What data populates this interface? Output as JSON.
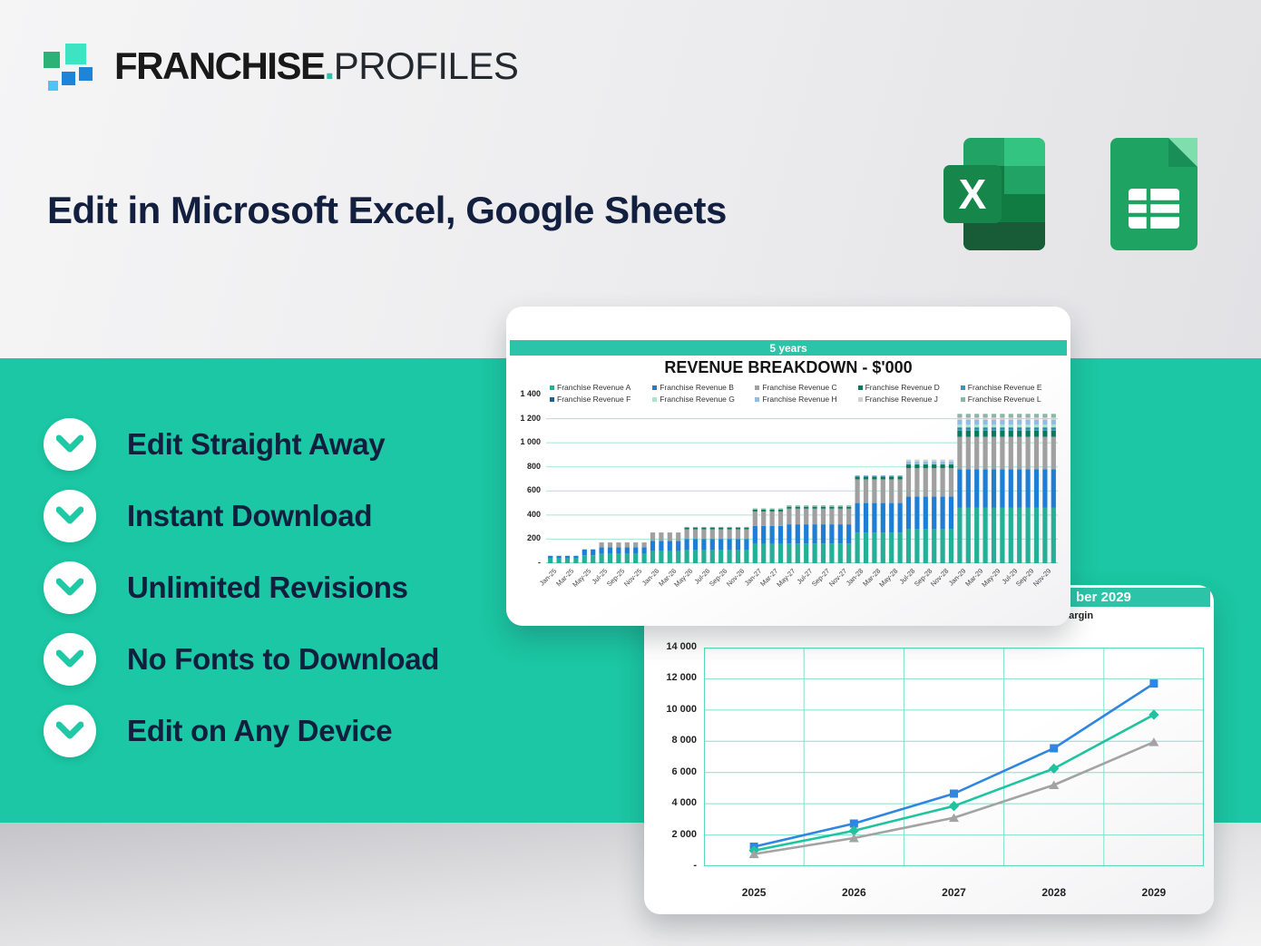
{
  "brand": {
    "logo_text_bold": "FRANCHISE",
    "logo_dot": ".",
    "logo_text_light": "PROFILES"
  },
  "heading": "Edit in Microsoft Excel, Google Sheets",
  "app_icons": [
    {
      "name": "microsoft-excel",
      "letter": "X"
    },
    {
      "name": "google-sheets"
    }
  ],
  "features": [
    {
      "label": "Edit Straight Away"
    },
    {
      "label": "Instant Download"
    },
    {
      "label": "Unlimited Revisions"
    },
    {
      "label": "No Fonts to Download"
    },
    {
      "label": "Edit on Any Device"
    }
  ],
  "colors": {
    "band_teal": "#1bc7a4",
    "accent_teal": "#2bc4a9",
    "navy": "#131f3e",
    "excel_green": "#185c37",
    "sheets_green": "#1ea362",
    "gridline_teal": "#a3e6d7"
  },
  "chart_data": [
    {
      "type": "bar",
      "stacked": true,
      "tab_label": "5 years",
      "title": "REVENUE BREAKDOWN - $'000",
      "ylim": [
        0,
        1400
      ],
      "ytick_labels": [
        "-",
        "200",
        "400",
        "600",
        "800",
        "1 000",
        "1 200",
        "1 400"
      ],
      "xtick_labels": [
        "Jan-25",
        "Mar-25",
        "May-25",
        "Jul-25",
        "Sep-25",
        "Nov-25",
        "Jan-26",
        "Mar-26",
        "May-26",
        "Jul-26",
        "Sep-26",
        "Nov-26",
        "Jan-27",
        "Mar-27",
        "May-27",
        "Jul-27",
        "Sep-27",
        "Nov-27",
        "Jan-28",
        "Mar-28",
        "May-28",
        "Jul-28",
        "Sep-28",
        "Nov-28",
        "Jan-29",
        "Mar-29",
        "May-29",
        "Jul-29",
        "Sep-29",
        "Nov-29"
      ],
      "bars_per_tick": 2,
      "legend_position": "top",
      "grid": true,
      "series": [
        {
          "name": "Franchise Revenue A",
          "color": "#23b097",
          "values": [
            40,
            40,
            40,
            40,
            65,
            65,
            80,
            80,
            80,
            80,
            80,
            80,
            100,
            100,
            100,
            100,
            110,
            110,
            110,
            110,
            110,
            110,
            110,
            110,
            160,
            160,
            160,
            160,
            165,
            165,
            165,
            165,
            165,
            165,
            165,
            165,
            255,
            255,
            255,
            255,
            255,
            255,
            285,
            285,
            285,
            285,
            285,
            285,
            460,
            460,
            460,
            460,
            460,
            460,
            460,
            460,
            460,
            460,
            460,
            460
          ]
        },
        {
          "name": "Franchise Revenue B",
          "color": "#1e7ed6",
          "values": [
            22,
            22,
            22,
            22,
            50,
            50,
            52,
            52,
            52,
            52,
            52,
            52,
            85,
            85,
            85,
            85,
            92,
            92,
            92,
            92,
            92,
            92,
            92,
            92,
            150,
            150,
            150,
            150,
            158,
            158,
            158,
            158,
            158,
            158,
            158,
            158,
            245,
            245,
            245,
            245,
            245,
            245,
            270,
            270,
            270,
            270,
            270,
            270,
            320,
            320,
            320,
            320,
            320,
            320,
            320,
            320,
            320,
            320,
            320,
            320
          ]
        },
        {
          "name": "Franchise Revenue C",
          "color": "#a0a0a0",
          "values": [
            0,
            0,
            0,
            0,
            0,
            0,
            40,
            40,
            40,
            40,
            40,
            40,
            70,
            70,
            70,
            70,
            80,
            80,
            80,
            80,
            80,
            80,
            80,
            80,
            120,
            120,
            120,
            120,
            130,
            130,
            130,
            130,
            130,
            130,
            130,
            130,
            195,
            195,
            195,
            195,
            195,
            195,
            235,
            235,
            235,
            235,
            235,
            235,
            270,
            270,
            270,
            270,
            270,
            270,
            270,
            270,
            270,
            270,
            270,
            270
          ]
        },
        {
          "name": "Franchise Revenue D",
          "color": "#0a7a5f",
          "values": [
            0,
            0,
            0,
            0,
            0,
            0,
            0,
            0,
            0,
            0,
            0,
            0,
            0,
            0,
            0,
            0,
            12,
            12,
            12,
            12,
            12,
            12,
            12,
            12,
            15,
            15,
            15,
            15,
            15,
            15,
            15,
            15,
            15,
            15,
            15,
            15,
            25,
            25,
            25,
            25,
            25,
            25,
            30,
            30,
            30,
            30,
            30,
            30,
            50,
            50,
            50,
            50,
            50,
            50,
            50,
            50,
            50,
            50,
            50,
            50
          ]
        },
        {
          "name": "Franchise Revenue E",
          "color": "#2f9db5",
          "values": [
            0,
            0,
            0,
            0,
            0,
            0,
            0,
            0,
            0,
            0,
            0,
            0,
            0,
            0,
            0,
            0,
            0,
            0,
            0,
            0,
            0,
            0,
            0,
            0,
            0,
            0,
            0,
            0,
            0,
            0,
            0,
            0,
            0,
            0,
            0,
            0,
            0,
            0,
            0,
            0,
            0,
            0,
            0,
            0,
            0,
            0,
            0,
            0,
            15,
            15,
            15,
            15,
            15,
            15,
            15,
            15,
            15,
            15,
            15,
            15
          ]
        },
        {
          "name": "Franchise Revenue F",
          "color": "#16648f",
          "values": [
            0,
            0,
            0,
            0,
            0,
            0,
            0,
            0,
            0,
            0,
            0,
            0,
            0,
            0,
            0,
            0,
            0,
            0,
            0,
            0,
            0,
            0,
            0,
            0,
            0,
            0,
            0,
            0,
            0,
            0,
            0,
            0,
            0,
            0,
            0,
            0,
            0,
            0,
            0,
            0,
            0,
            0,
            0,
            0,
            0,
            0,
            0,
            0,
            10,
            10,
            10,
            10,
            10,
            10,
            10,
            10,
            10,
            10,
            10,
            10
          ]
        },
        {
          "name": "Franchise Revenue G",
          "color": "#a8e6c8",
          "values": [
            0,
            0,
            0,
            0,
            0,
            0,
            0,
            0,
            0,
            0,
            0,
            0,
            0,
            0,
            0,
            0,
            0,
            0,
            0,
            0,
            0,
            0,
            0,
            0,
            0,
            0,
            0,
            0,
            0,
            0,
            0,
            0,
            0,
            0,
            0,
            0,
            0,
            0,
            0,
            0,
            0,
            0,
            0,
            0,
            0,
            0,
            0,
            0,
            25,
            25,
            25,
            25,
            25,
            25,
            25,
            25,
            25,
            25,
            25,
            25
          ]
        },
        {
          "name": "Franchise Revenue H",
          "color": "#92bce8",
          "values": [
            0,
            0,
            0,
            0,
            0,
            0,
            0,
            0,
            0,
            0,
            0,
            0,
            0,
            0,
            0,
            0,
            0,
            0,
            0,
            0,
            0,
            0,
            0,
            0,
            0,
            0,
            0,
            0,
            0,
            0,
            0,
            0,
            0,
            0,
            0,
            0,
            10,
            10,
            10,
            10,
            10,
            10,
            25,
            25,
            25,
            25,
            25,
            25,
            40,
            40,
            40,
            40,
            40,
            40,
            40,
            40,
            40,
            40,
            40,
            40
          ]
        },
        {
          "name": "Franchise Revenue J",
          "color": "#cfcfcf",
          "values": [
            0,
            0,
            0,
            0,
            0,
            0,
            0,
            0,
            0,
            0,
            0,
            0,
            0,
            0,
            0,
            0,
            0,
            0,
            0,
            0,
            0,
            0,
            0,
            0,
            0,
            0,
            0,
            0,
            0,
            0,
            0,
            0,
            0,
            0,
            0,
            0,
            0,
            0,
            0,
            0,
            0,
            0,
            15,
            15,
            15,
            15,
            15,
            15,
            20,
            20,
            20,
            20,
            20,
            20,
            20,
            20,
            20,
            20,
            20,
            20
          ]
        },
        {
          "name": "Franchise Revenue L",
          "color": "#86b8a6",
          "values": [
            0,
            0,
            0,
            0,
            0,
            0,
            0,
            0,
            0,
            0,
            0,
            0,
            0,
            0,
            0,
            0,
            8,
            8,
            8,
            8,
            8,
            8,
            8,
            8,
            10,
            10,
            10,
            10,
            12,
            12,
            12,
            12,
            12,
            12,
            12,
            12,
            0,
            0,
            0,
            0,
            0,
            0,
            0,
            0,
            0,
            0,
            0,
            0,
            30,
            30,
            30,
            30,
            30,
            30,
            30,
            30,
            30,
            30,
            30,
            30
          ]
        }
      ]
    },
    {
      "type": "line",
      "tab_label_visible_fragment": "ber 2029",
      "legend_visible_fragment": "oss Margin",
      "x": [
        "2025",
        "2026",
        "2027",
        "2028",
        "2029"
      ],
      "ylim": [
        0,
        14000
      ],
      "ytick_labels": [
        "-",
        "2 000",
        "4 000",
        "6 000",
        "8 000",
        "10 000",
        "12 000",
        "14 000"
      ],
      "grid": true,
      "series": [
        {
          "name": "blue-square-series",
          "marker": "square",
          "color": "#2e86e0",
          "values": [
            1250,
            2730,
            4650,
            7550,
            11700
          ]
        },
        {
          "name": "teal-diamond-series",
          "marker": "diamond",
          "color": "#1fc3a0",
          "values": [
            1000,
            2270,
            3850,
            6250,
            9700
          ]
        },
        {
          "name": "gray-triangle-series",
          "marker": "triangle",
          "color": "#a3a3a3",
          "values": [
            780,
            1800,
            3100,
            5200,
            7950
          ]
        }
      ]
    }
  ]
}
